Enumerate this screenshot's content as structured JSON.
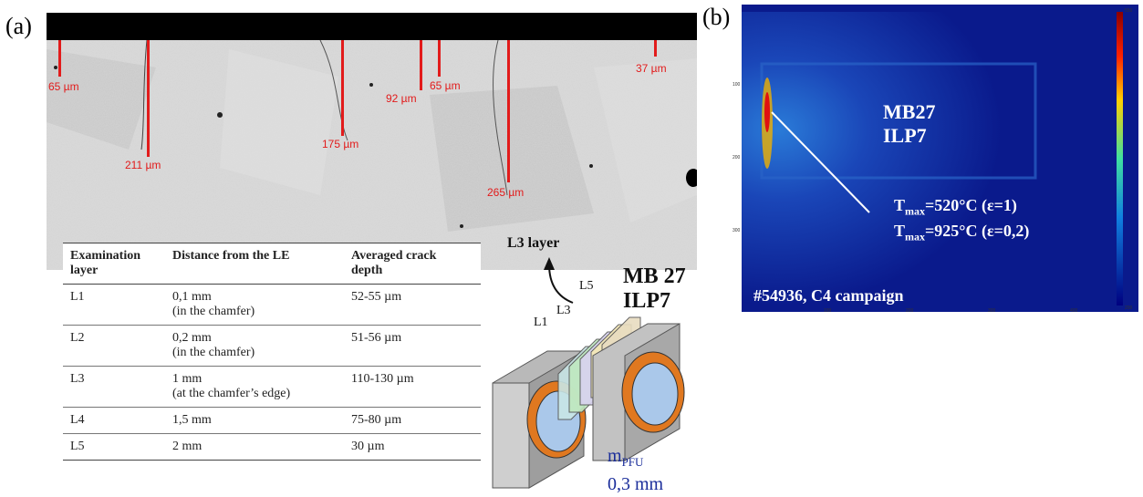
{
  "panel_a": {
    "label": "(a)",
    "crack_labels": [
      "65 µm",
      "211 µm",
      "175 µm",
      "92 µm",
      "65 µm",
      "265 µm",
      "37 µm"
    ],
    "table": {
      "headers": [
        [
          "Examination",
          "layer"
        ],
        [
          "Distance from the LE",
          ""
        ],
        [
          "Averaged crack",
          "depth"
        ]
      ],
      "rows": [
        {
          "layer": "L1",
          "distance": "0,1 mm",
          "note": "(in the chamfer)",
          "depth": "52-55 µm"
        },
        {
          "layer": "L2",
          "distance": "0,2 mm",
          "note": "(in the chamfer)",
          "depth": "51-56 µm"
        },
        {
          "layer": "L3",
          "distance": "1 mm",
          "note": "(at the chamfer’s edge)",
          "depth": "110-130 µm"
        },
        {
          "layer": "L4",
          "distance": "1,5 mm",
          "note": "",
          "depth": "75-80 µm"
        },
        {
          "layer": "L5",
          "distance": "2 mm",
          "note": "",
          "depth": "30 µm"
        }
      ]
    },
    "schematic": {
      "l3_layer": "L3 layer",
      "block_line1": "MB 27",
      "block_line2": "ILP7",
      "l1": "L1",
      "l3": "L3",
      "l5": "L5",
      "mpfu_main": "m",
      "mpfu_sub": "PFU",
      "mpfu_value": "0,3 mm"
    }
  },
  "panel_b": {
    "label": "(b)",
    "line1": "MB27",
    "line2": "ILP7",
    "tmax1_main": "T",
    "tmax1_sub": "max",
    "tmax1_val": "=520°C (ε=1)",
    "tmax2_main": "T",
    "tmax2_sub": "max",
    "tmax2_val": "=925°C (ε=0,2)",
    "footer": "#54936, C4 campaign",
    "colors": {
      "background": "#0a1a8c",
      "hotspot": "#e01010",
      "text": "#ffffff"
    }
  }
}
